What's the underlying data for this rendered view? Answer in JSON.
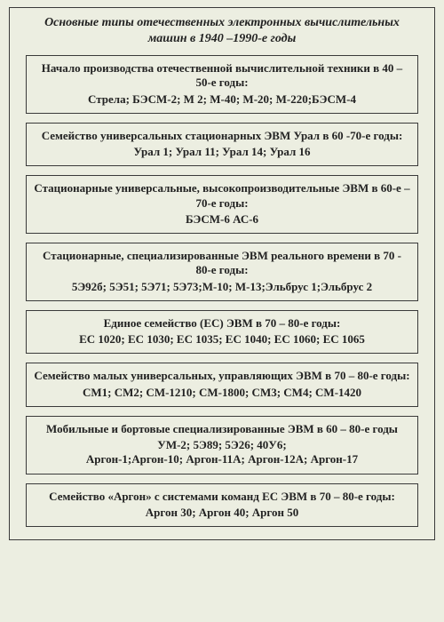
{
  "title": "Основные типы отечественных электронных вычислительных машин в 1940 –1990-е годы",
  "boxes": [
    {
      "heading": "Начало производства отечественной вычислительной техники в 40 – 50-е годы:",
      "body": "Стрела; БЭСМ-2; М 2; М-40; М-20; М-220;БЭСМ-4"
    },
    {
      "heading": "Семейство универсальных стационарных ЭВМ Урал в 60 -70-е годы:",
      "body": "Урал 1; Урал 11; Урал 14; Урал 16"
    },
    {
      "heading": "Стационарные универсальные, высокопроизводительные ЭВМ в 60-е  –  70-е годы:",
      "body": "БЭСМ-6  АС-6"
    },
    {
      "heading": "Стационарные,  специализированные ЭВМ реального времени в 70 - 80-е годы:",
      "body": "5Э92б; 5Э51;  5Э71; 5Э73;М-10; М-13;Эльбрус 1;Эльбрус 2"
    },
    {
      "heading": "Единое  семейство (ЕС) ЭВМ в 70 – 80-е годы:",
      "body": "ЕС 1020; ЕС 1030; ЕС 1035; ЕС 1040; ЕС 1060; ЕС 1065"
    },
    {
      "heading": "Семейство малых универсальных, управляющих ЭВМ в  70 – 80-е годы:",
      "body": "СМ1; СМ2; СМ-1210; СМ-1800; СМ3; СМ4; СМ-1420"
    },
    {
      "heading": "Мобильные и бортовые специализированные ЭВМ в 60 – 80-е годы",
      "body": "УМ-2; 5Э89; 5Э26; 40У6;\nАргон-1;Аргон-10; Аргон-11А; Аргон-12А; Аргон-17"
    },
    {
      "heading": "Семейство «Аргон» с системами команд ЕС ЭВМ в 70 – 80-е годы:",
      "body": "Аргон 30;  Аргон 40;  Аргон 50"
    }
  ]
}
